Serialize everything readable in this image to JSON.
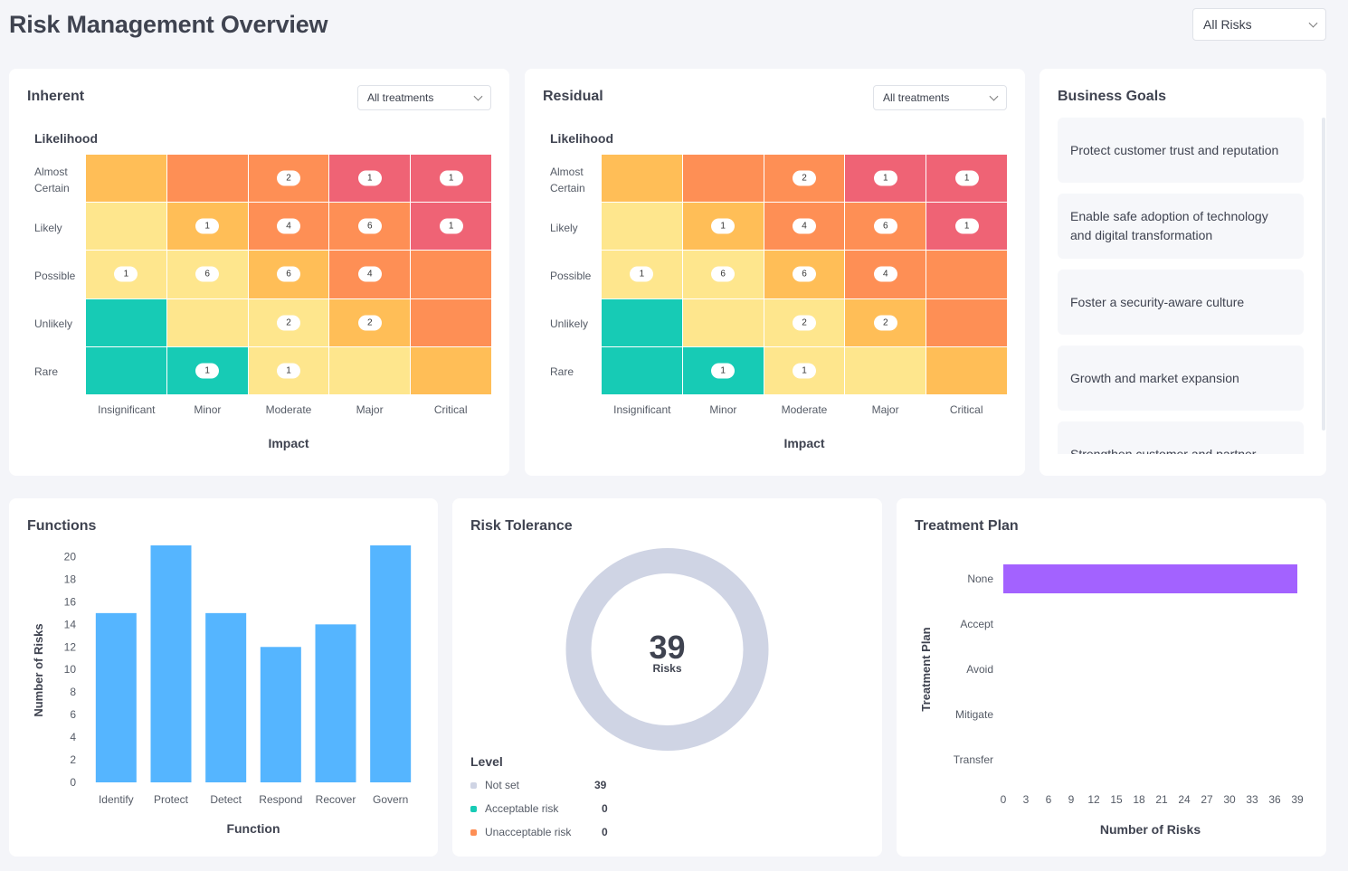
{
  "page": {
    "title": "Risk Management Overview",
    "filter": "All Risks"
  },
  "heatmaps": [
    {
      "id": "inherent",
      "title": "Inherent",
      "filter": "All treatments",
      "y_title": "Likelihood",
      "x_title": "Impact",
      "rows": [
        "Almost Certain",
        "Likely",
        "Possible",
        "Unlikely",
        "Rare"
      ],
      "cols": [
        "Insignificant",
        "Minor",
        "Moderate",
        "Major",
        "Critical"
      ],
      "colors": [
        [
          "#ffbe57",
          "#fe8f55",
          "#fe8f55",
          "#ef6375",
          "#ef6375"
        ],
        [
          "#fee68d",
          "#ffbe57",
          "#fe8f55",
          "#fe8f55",
          "#ef6375"
        ],
        [
          "#fee68d",
          "#fee68d",
          "#ffbe57",
          "#fe8f55",
          "#fe8f55"
        ],
        [
          "#17cbb5",
          "#fee68d",
          "#fee68d",
          "#ffbe57",
          "#fe8f55"
        ],
        [
          "#17cbb5",
          "#17cbb5",
          "#fee68d",
          "#fee68d",
          "#ffbe57"
        ]
      ],
      "counts": [
        [
          null,
          null,
          "2",
          "1",
          "1"
        ],
        [
          null,
          "1",
          "4",
          "6",
          "1"
        ],
        [
          "1",
          "6",
          "6",
          "4",
          null
        ],
        [
          null,
          null,
          "2",
          "2",
          null
        ],
        [
          null,
          "1",
          "1",
          null,
          null
        ]
      ]
    },
    {
      "id": "residual",
      "title": "Residual",
      "filter": "All treatments",
      "y_title": "Likelihood",
      "x_title": "Impact",
      "rows": [
        "Almost Certain",
        "Likely",
        "Possible",
        "Unlikely",
        "Rare"
      ],
      "cols": [
        "Insignificant",
        "Minor",
        "Moderate",
        "Major",
        "Critical"
      ],
      "colors": [
        [
          "#ffbe57",
          "#fe8f55",
          "#fe8f55",
          "#ef6375",
          "#ef6375"
        ],
        [
          "#fee68d",
          "#ffbe57",
          "#fe8f55",
          "#fe8f55",
          "#ef6375"
        ],
        [
          "#fee68d",
          "#fee68d",
          "#ffbe57",
          "#fe8f55",
          "#fe8f55"
        ],
        [
          "#17cbb5",
          "#fee68d",
          "#fee68d",
          "#ffbe57",
          "#fe8f55"
        ],
        [
          "#17cbb5",
          "#17cbb5",
          "#fee68d",
          "#fee68d",
          "#ffbe57"
        ]
      ],
      "counts": [
        [
          null,
          null,
          "2",
          "1",
          "1"
        ],
        [
          null,
          "1",
          "4",
          "6",
          "1"
        ],
        [
          "1",
          "6",
          "6",
          "4",
          null
        ],
        [
          null,
          null,
          "2",
          "2",
          null
        ],
        [
          null,
          "1",
          "1",
          null,
          null
        ]
      ]
    }
  ],
  "goals": {
    "title": "Business Goals",
    "items": [
      "Protect customer trust and reputation",
      "Enable safe adoption of technology and digital transformation",
      "Foster a security-aware culture",
      "Growth and market expansion",
      "Strengthen customer and partner"
    ]
  },
  "functions": {
    "title": "Functions"
  },
  "tolerance": {
    "title": "Risk Tolerance",
    "total": "39",
    "total_label": "Risks",
    "legend_title": "Level",
    "legend": [
      {
        "label": "Not set",
        "value": "39",
        "color": "#cfd4e4"
      },
      {
        "label": "Acceptable risk",
        "value": "0",
        "color": "#17cbb5"
      },
      {
        "label": "Unacceptable risk",
        "value": "0",
        "color": "#fe8f55"
      }
    ]
  },
  "treatment": {
    "title": "Treatment Plan"
  },
  "chart_data": [
    {
      "type": "bar",
      "title": "Functions",
      "xlabel": "Function",
      "ylabel": "Number of Risks",
      "categories": [
        "Identify",
        "Protect",
        "Detect",
        "Respond",
        "Recover",
        "Govern"
      ],
      "values": [
        15,
        21,
        15,
        12,
        14,
        21
      ],
      "ylim": [
        0,
        21
      ],
      "yticks": [
        0,
        2,
        4,
        6,
        8,
        10,
        12,
        14,
        16,
        18,
        20
      ],
      "color": "#55b5ff"
    },
    {
      "type": "pie",
      "title": "Risk Tolerance",
      "labels": [
        "Not set",
        "Acceptable risk",
        "Unacceptable risk"
      ],
      "values": [
        39,
        0,
        0
      ],
      "colors": [
        "#cfd4e4",
        "#17cbb5",
        "#fe8f55"
      ]
    },
    {
      "type": "bar",
      "orientation": "horizontal",
      "title": "Treatment Plan",
      "xlabel": "Number of Risks",
      "ylabel": "Treatment Plan",
      "categories": [
        "None",
        "Accept",
        "Avoid",
        "Mitigate",
        "Transfer"
      ],
      "values": [
        39,
        0,
        0,
        0,
        0
      ],
      "xlim": [
        0,
        39
      ],
      "xticks": [
        0,
        3,
        6,
        9,
        12,
        15,
        18,
        21,
        24,
        27,
        30,
        33,
        36,
        39
      ],
      "color": "#a362ff"
    }
  ]
}
